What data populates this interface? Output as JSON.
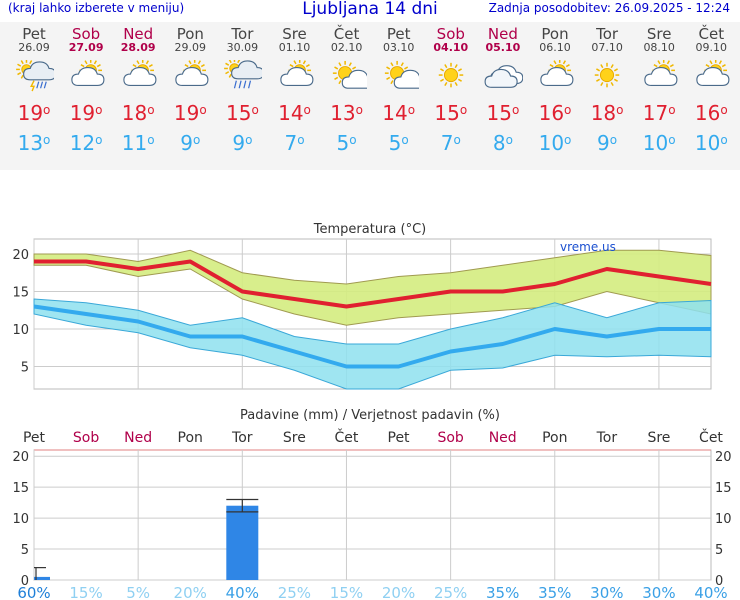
{
  "header": {
    "hint": "(kraj lahko izberete v meniju)",
    "title": "Ljubljana 14 dni",
    "updated": "Zadnja posodobitev: 26.09.2025 - 12:24"
  },
  "days": [
    {
      "name": "Pet",
      "date": "26.09",
      "weekend": false,
      "icon": "thunder-rain-icon",
      "max": "19",
      "min": "13"
    },
    {
      "name": "Sob",
      "date": "27.09",
      "weekend": true,
      "icon": "partly-cloudy-icon",
      "max": "19",
      "min": "12"
    },
    {
      "name": "Ned",
      "date": "28.09",
      "weekend": true,
      "icon": "partly-cloudy-icon",
      "max": "18",
      "min": "11"
    },
    {
      "name": "Pon",
      "date": "29.09",
      "weekend": false,
      "icon": "partly-cloudy-icon",
      "max": "19",
      "min": "9"
    },
    {
      "name": "Tor",
      "date": "30.09",
      "weekend": false,
      "icon": "rain-cloud-icon",
      "max": "15",
      "min": "9"
    },
    {
      "name": "Sre",
      "date": "01.10",
      "weekend": false,
      "icon": "partly-cloudy-icon",
      "max": "14",
      "min": "7"
    },
    {
      "name": "Čet",
      "date": "02.10",
      "weekend": false,
      "icon": "sun-small-cloud-icon",
      "max": "13",
      "min": "5"
    },
    {
      "name": "Pet",
      "date": "03.10",
      "weekend": false,
      "icon": "sun-small-cloud-icon",
      "max": "14",
      "min": "5"
    },
    {
      "name": "Sob",
      "date": "04.10",
      "weekend": true,
      "icon": "sun-icon",
      "max": "15",
      "min": "7"
    },
    {
      "name": "Ned",
      "date": "05.10",
      "weekend": true,
      "icon": "cloud-icon",
      "max": "15",
      "min": "8"
    },
    {
      "name": "Pon",
      "date": "06.10",
      "weekend": false,
      "icon": "partly-cloudy-icon",
      "max": "16",
      "min": "10"
    },
    {
      "name": "Tor",
      "date": "07.10",
      "weekend": false,
      "icon": "sun-icon",
      "max": "18",
      "min": "9"
    },
    {
      "name": "Sre",
      "date": "08.10",
      "weekend": false,
      "icon": "partly-cloudy-icon",
      "max": "17",
      "min": "10"
    },
    {
      "name": "Čet",
      "date": "09.10",
      "weekend": false,
      "icon": "partly-cloudy-icon",
      "max": "16",
      "min": "10"
    }
  ],
  "deg_symbol": "o",
  "colors": {
    "max": "#e02030",
    "min": "#33aaee",
    "weekend": "#b0004a",
    "band_max": "#d4ec80",
    "band_min": "#8ee0ee",
    "bar": "#2f86e6"
  },
  "chart_data": [
    {
      "type": "line",
      "title": "Temperatura (°C)",
      "watermark": "vreme.us",
      "x": [
        "26.09",
        "27.09",
        "28.09",
        "29.09",
        "30.09",
        "01.10",
        "02.10",
        "03.10",
        "04.10",
        "05.10",
        "06.10",
        "07.10",
        "08.10",
        "09.10"
      ],
      "ylim": [
        2,
        22
      ],
      "yticks": [
        5,
        10,
        15,
        20
      ],
      "grid": true,
      "series": [
        {
          "values": [
            19,
            19,
            18,
            19,
            15,
            14,
            13,
            14,
            15,
            15,
            16,
            18,
            17,
            16
          ],
          "band_high": [
            20,
            20,
            19,
            20.5,
            17.5,
            16.5,
            16,
            17,
            17.5,
            18.5,
            19.5,
            20.5,
            20.5,
            19.8
          ],
          "band_low": [
            18.5,
            18.5,
            17,
            18,
            14,
            12,
            10.5,
            11.5,
            12,
            12.5,
            13,
            15,
            13.5,
            12
          ]
        },
        {
          "values": [
            13,
            12,
            11,
            9,
            9,
            7,
            5,
            5,
            7,
            8,
            10,
            9,
            10,
            10
          ],
          "band_high": [
            14,
            13.5,
            12.5,
            10.5,
            11.5,
            9,
            8,
            8,
            10,
            11.5,
            13.5,
            11.5,
            13.5,
            13.8
          ],
          "band_low": [
            12,
            10.5,
            9.5,
            7.5,
            6.5,
            4.5,
            2,
            2,
            4.5,
            4.8,
            6.5,
            6.3,
            6.5,
            6.3
          ]
        }
      ]
    },
    {
      "type": "bar",
      "title": "Padavine (mm) / Verjetnost padavin (%)",
      "categories": [
        "Pet",
        "Sob",
        "Ned",
        "Pon",
        "Tor",
        "Sre",
        "Čet",
        "Pet",
        "Sob",
        "Ned",
        "Pon",
        "Tor",
        "Sre",
        "Čet"
      ],
      "values": [
        0.5,
        0,
        0,
        0,
        12,
        0,
        0,
        0,
        0,
        0,
        0,
        0,
        0,
        0
      ],
      "range_high": [
        2,
        null,
        null,
        null,
        13,
        null,
        null,
        null,
        null,
        null,
        null,
        null,
        null,
        null
      ],
      "range_low": [
        0,
        null,
        null,
        null,
        11,
        null,
        null,
        null,
        null,
        null,
        null,
        null,
        null,
        null
      ],
      "probability": [
        "60%",
        "15%",
        "5%",
        "20%",
        "40%",
        "25%",
        "15%",
        "20%",
        "25%",
        "35%",
        "35%",
        "30%",
        "30%",
        "40%"
      ],
      "probability_values": [
        60,
        15,
        5,
        20,
        40,
        25,
        15,
        20,
        25,
        35,
        35,
        30,
        30,
        40
      ],
      "ylim": [
        0,
        21
      ],
      "yticks": [
        0,
        5,
        10,
        15,
        20
      ],
      "grid": true
    }
  ]
}
